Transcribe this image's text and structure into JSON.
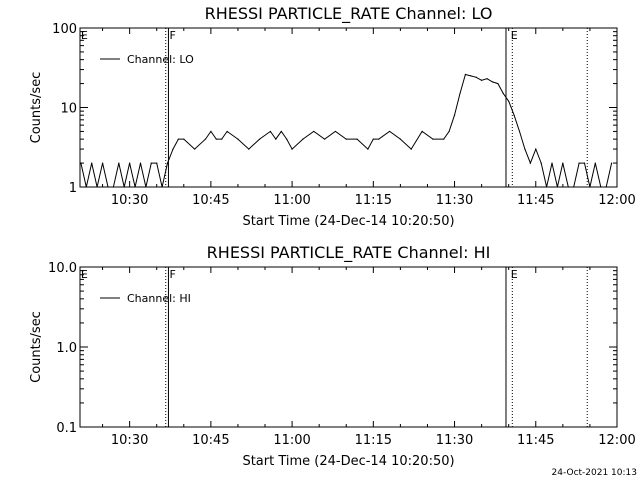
{
  "footer": {
    "timestamp": "24-Oct-2021 10:13"
  },
  "chart_data": [
    {
      "type": "line",
      "title": "RHESSI PARTICLE_RATE Channel: LO",
      "xlabel": "Start Time (24-Dec-14 10:20:50)",
      "ylabel": "Counts/sec",
      "yscale": "log",
      "ylim": [
        1,
        100
      ],
      "xlim": [
        "10:20:50",
        "12:00:00"
      ],
      "x_ticks": [
        "10:30",
        "10:45",
        "11:00",
        "11:15",
        "11:30",
        "11:45",
        "12:00"
      ],
      "y_ticks": [
        "1",
        "10",
        "100"
      ],
      "grid": false,
      "legend_position": "top-left",
      "series": [
        {
          "name": "Channel: LO",
          "x": [
            "10:21",
            "10:22",
            "10:23",
            "10:24",
            "10:25",
            "10:26",
            "10:27",
            "10:28",
            "10:29",
            "10:30",
            "10:31",
            "10:32",
            "10:33",
            "10:34",
            "10:35",
            "10:36",
            "10:37",
            "10:38",
            "10:39",
            "10:40",
            "10:42",
            "10:44",
            "10:45",
            "10:46",
            "10:47",
            "10:48",
            "10:50",
            "10:52",
            "10:54",
            "10:56",
            "10:57",
            "10:58",
            "10:59",
            "11:00",
            "11:02",
            "11:04",
            "11:06",
            "11:08",
            "11:10",
            "11:12",
            "11:14",
            "11:15",
            "11:16",
            "11:18",
            "11:20",
            "11:22",
            "11:24",
            "11:26",
            "11:28",
            "11:29",
            "11:30",
            "11:31",
            "11:32",
            "11:33",
            "11:34",
            "11:35",
            "11:36",
            "11:37",
            "11:38",
            "11:39",
            "11:40",
            "11:41",
            "11:42",
            "11:43",
            "11:44",
            "11:45",
            "11:46",
            "11:47",
            "11:48",
            "11:49",
            "11:50",
            "11:51",
            "11:52",
            "11:53",
            "11:54",
            "11:55",
            "11:56",
            "11:57",
            "11:58",
            "11:59"
          ],
          "values": [
            2,
            1,
            2,
            1,
            2,
            1,
            1,
            2,
            1,
            2,
            1,
            2,
            1,
            2,
            2,
            1,
            2,
            3,
            4,
            4,
            3,
            4,
            5,
            4,
            4,
            5,
            4,
            3,
            4,
            5,
            4,
            5,
            4,
            3,
            4,
            5,
            4,
            5,
            4,
            4,
            3,
            4,
            4,
            5,
            4,
            3,
            5,
            4,
            4,
            5,
            8,
            15,
            26,
            25,
            24,
            22,
            23,
            21,
            20,
            15,
            12,
            8,
            5,
            3,
            2,
            3,
            2,
            1,
            2,
            1,
            2,
            1,
            1,
            2,
            2,
            1,
            2,
            1,
            1,
            2
          ]
        }
      ],
      "annotations": [
        {
          "text": "E",
          "x": "10:21"
        },
        {
          "text": "F",
          "x": "10:37"
        },
        {
          "text": "E",
          "x": "11:40"
        }
      ],
      "vertical_lines": [
        {
          "x": "10:36:40",
          "style": "dotted"
        },
        {
          "x": "10:37:10",
          "style": "solid"
        },
        {
          "x": "11:39:30",
          "style": "solid"
        },
        {
          "x": "11:40:40",
          "style": "dotted"
        },
        {
          "x": "11:54:30",
          "style": "dotted"
        }
      ]
    },
    {
      "type": "line",
      "title": "RHESSI PARTICLE_RATE Channel: HI",
      "xlabel": "Start Time (24-Dec-14 10:20:50)",
      "ylabel": "Counts/sec",
      "yscale": "log",
      "ylim": [
        0.1,
        10.0
      ],
      "xlim": [
        "10:20:50",
        "12:00:00"
      ],
      "x_ticks": [
        "10:30",
        "10:45",
        "11:00",
        "11:15",
        "11:30",
        "11:45",
        "12:00"
      ],
      "y_ticks": [
        "0.1",
        "1.0",
        "10.0"
      ],
      "grid": false,
      "legend_position": "top-left",
      "series": [
        {
          "name": "Channel: HI",
          "x": [],
          "values": []
        }
      ],
      "annotations": [
        {
          "text": "E",
          "x": "10:21"
        },
        {
          "text": "F",
          "x": "10:37"
        },
        {
          "text": "E",
          "x": "11:40"
        }
      ],
      "vertical_lines": [
        {
          "x": "10:36:40",
          "style": "dotted"
        },
        {
          "x": "10:37:10",
          "style": "solid"
        },
        {
          "x": "11:39:30",
          "style": "solid"
        },
        {
          "x": "11:40:40",
          "style": "dotted"
        },
        {
          "x": "11:54:30",
          "style": "dotted"
        }
      ]
    }
  ]
}
